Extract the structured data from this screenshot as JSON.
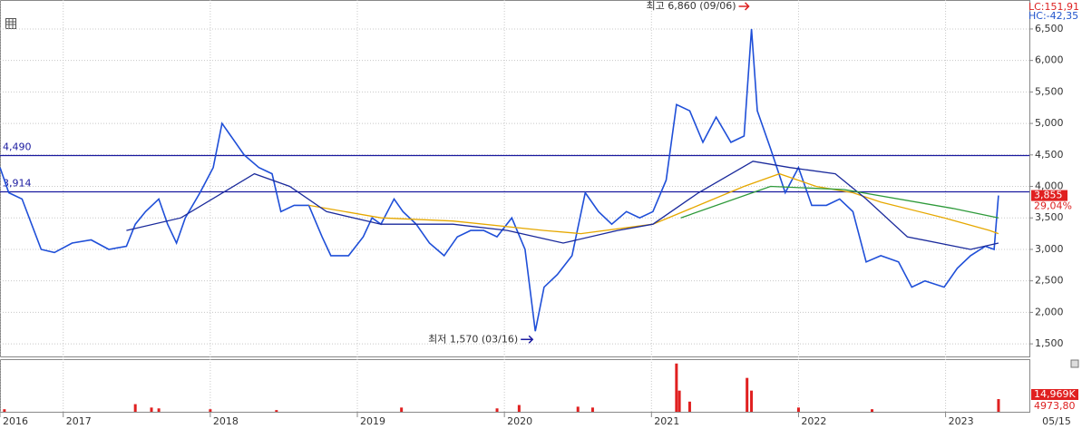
{
  "chart_data": {
    "type": "line",
    "xlim": [
      2016.57,
      2023.57
    ],
    "xticks": [
      {
        "value": 2016.57,
        "label": "2016"
      },
      2017,
      2018,
      2019,
      2020,
      2021,
      2022,
      2023
    ],
    "ylim": [
      1300,
      6960
    ],
    "yticks": [
      {
        "value": 1500,
        "label": "1,500"
      },
      {
        "value": 2000,
        "label": "2,000"
      },
      {
        "value": 2500,
        "label": "2,500"
      },
      {
        "value": 3000,
        "label": "3,000"
      },
      {
        "value": 3500,
        "label": "3,500"
      },
      {
        "value": 4000,
        "label": "4,000"
      },
      {
        "value": 4500,
        "label": "4,500"
      },
      {
        "value": 5000,
        "label": "5,000"
      },
      {
        "value": 5500,
        "label": "5,500"
      },
      {
        "value": 6000,
        "label": "6,000"
      },
      {
        "value": 6500,
        "label": "6,500"
      }
    ],
    "grid": true,
    "series": [
      {
        "color": "#1f4fd8",
        "x": [
          2016.57,
          2016.63,
          2016.72,
          2016.85,
          2016.94,
          2017.06,
          2017.19,
          2017.31,
          2017.43,
          2017.49,
          2017.56,
          2017.65,
          2017.71,
          2017.77,
          2017.83,
          2017.93,
          2018.02,
          2018.08,
          2018.14,
          2018.23,
          2018.33,
          2018.42,
          2018.48,
          2018.57,
          2018.67,
          2018.76,
          2018.82,
          2018.94,
          2019.04,
          2019.1,
          2019.16,
          2019.25,
          2019.31,
          2019.4,
          2019.49,
          2019.59,
          2019.68,
          2019.77,
          2019.86,
          2019.95,
          2020.05,
          2020.14,
          2020.21,
          2020.27,
          2020.36,
          2020.46,
          2020.55,
          2020.64,
          2020.73,
          2020.83,
          2020.92,
          2021.01,
          2021.1,
          2021.17,
          2021.26,
          2021.35,
          2021.44,
          2021.54,
          2021.63,
          2021.68,
          2021.72,
          2021.81,
          2021.91,
          2022.0,
          2022.09,
          2022.19,
          2022.28,
          2022.37,
          2022.46,
          2022.56,
          2022.68,
          2022.77,
          2022.86,
          2022.99,
          2023.08,
          2023.17,
          2023.27,
          2023.33,
          2023.36
        ],
        "values": [
          4300,
          3900,
          3800,
          3000,
          2950,
          3100,
          3150,
          3000,
          3050,
          3400,
          3600,
          3800,
          3400,
          3100,
          3500,
          3900,
          4300,
          5000,
          4800,
          4500,
          4300,
          4200,
          3600,
          3700,
          3700,
          3200,
          2900,
          2900,
          3200,
          3500,
          3400,
          3800,
          3600,
          3400,
          3100,
          2900,
          3200,
          3300,
          3300,
          3200,
          3500,
          3000,
          1700,
          2400,
          2600,
          2900,
          3900,
          3600,
          3400,
          3600,
          3500,
          3600,
          4100,
          5300,
          5200,
          4700,
          5100,
          4700,
          4800,
          6500,
          5200,
          4600,
          3900,
          4300,
          3700,
          3700,
          3800,
          3600,
          2800,
          2900,
          2800,
          2400,
          2500,
          2400,
          2700,
          2900,
          3050,
          3000,
          3855
        ]
      },
      {
        "color": "#e6a800",
        "x": [
          2018.67,
          2019.16,
          2019.65,
          2020.27,
          2020.52,
          2021.01,
          2021.32,
          2021.63,
          2021.87,
          2022.12,
          2022.37,
          2022.56,
          2022.99,
          2023.3,
          2023.36
        ],
        "values": [
          3700,
          3500,
          3450,
          3300,
          3250,
          3400,
          3700,
          4000,
          4200,
          4000,
          3900,
          3750,
          3500,
          3300,
          3250
        ]
      },
      {
        "color": "#1a2a9c",
        "x": [
          2017.43,
          2017.8,
          2018.3,
          2018.54,
          2018.79,
          2019.16,
          2019.65,
          2020.02,
          2020.4,
          2020.77,
          2021.01,
          2021.32,
          2021.69,
          2021.94,
          2022.25,
          2022.46,
          2022.74,
          2023.17,
          2023.36
        ],
        "values": [
          3300,
          3500,
          4200,
          4000,
          3600,
          3400,
          3400,
          3300,
          3100,
          3300,
          3400,
          3900,
          4400,
          4300,
          4200,
          3800,
          3200,
          3000,
          3100
        ]
      },
      {
        "color": "#2e9a3a",
        "x": [
          2021.2,
          2021.81,
          2022.31,
          2023.05,
          2023.36
        ],
        "values": [
          3500,
          4000,
          3950,
          3650,
          3500
        ]
      }
    ],
    "hlines": [
      {
        "value": 4490,
        "label": "4,490"
      },
      {
        "value": 3914,
        "label": "3,914"
      }
    ],
    "high": {
      "text": "최고 6,860 (09/06)",
      "x": 2021.68,
      "value": 6860
    },
    "low": {
      "text": "최저 1,570 (03/16)",
      "x": 2020.21,
      "value": 1570
    },
    "info": [
      "LC:151,91",
      "HC:-42,35"
    ],
    "last": {
      "value": 3855,
      "label": "3,855",
      "change": "29,04%"
    },
    "volume": {
      "ylim": [
        0,
        60000
      ],
      "color": "#e02020",
      "x": [
        2016.6,
        2017.49,
        2017.6,
        2017.65,
        2018.0,
        2018.45,
        2019.3,
        2019.95,
        2020.1,
        2020.5,
        2020.6,
        2021.17,
        2021.19,
        2021.26,
        2021.65,
        2021.68,
        2022.0,
        2022.5,
        2023.36
      ],
      "values": [
        3000,
        9000,
        5000,
        4000,
        3000,
        2000,
        5000,
        4000,
        8000,
        6000,
        5000,
        57000,
        25000,
        12000,
        40000,
        25000,
        5000,
        3000,
        14969
      ],
      "labels": [
        "14,969K",
        "4973,80"
      ]
    },
    "date_label": "05/15"
  }
}
